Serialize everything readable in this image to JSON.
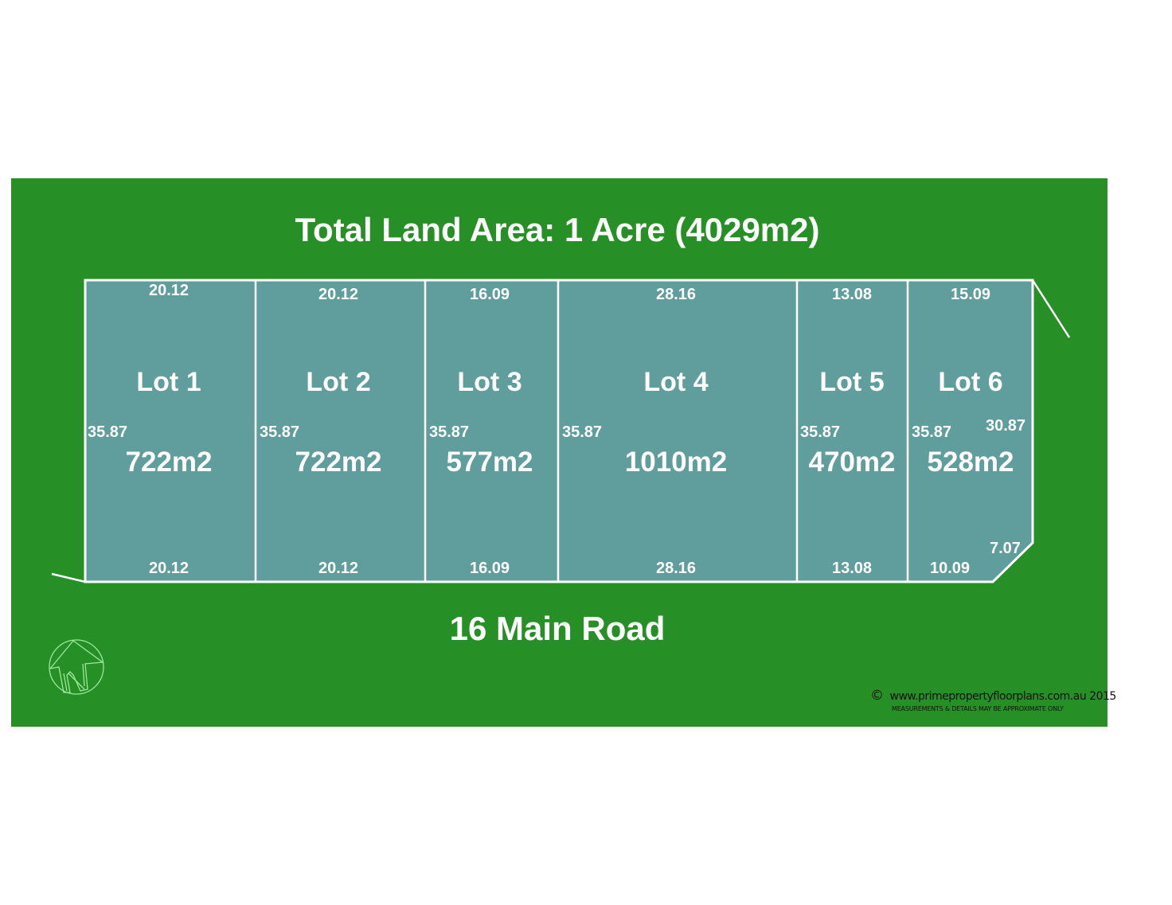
{
  "title": "Total Land Area: 1 Acre (4029m2)",
  "road": "16 Main Road",
  "colors": {
    "background": "#268f25",
    "lot_fill": "#5f9e9c",
    "boundary": "#ffffff"
  },
  "lots": [
    {
      "name": "Lot 1",
      "area": "722m2",
      "top": "20.12",
      "bottom": "20.12",
      "side": "35.87"
    },
    {
      "name": "Lot 2",
      "area": "722m2",
      "top": "20.12",
      "bottom": "20.12",
      "side": "35.87"
    },
    {
      "name": "Lot 3",
      "area": "577m2",
      "top": "16.09",
      "bottom": "16.09",
      "side": "35.87"
    },
    {
      "name": "Lot 4",
      "area": "1010m2",
      "top": "28.16",
      "bottom": "28.16",
      "side": "35.87"
    },
    {
      "name": "Lot 5",
      "area": "470m2",
      "top": "13.08",
      "bottom": "13.08",
      "side": "35.87"
    },
    {
      "name": "Lot 6",
      "area": "528m2",
      "top": "15.09",
      "bottom": "10.09",
      "side": "35.87",
      "right_side": "30.87",
      "corner": "7.07"
    }
  ],
  "north_arrow": {
    "icon": "north-arrow-icon",
    "letter": "N"
  },
  "footer": {
    "copyright_symbol": "©",
    "website": "www.primepropertyfloorplans.com.au 2015",
    "disclaimer": "MEASUREMENTS & DETAILS MAY BE APPROXIMATE ONLY"
  }
}
